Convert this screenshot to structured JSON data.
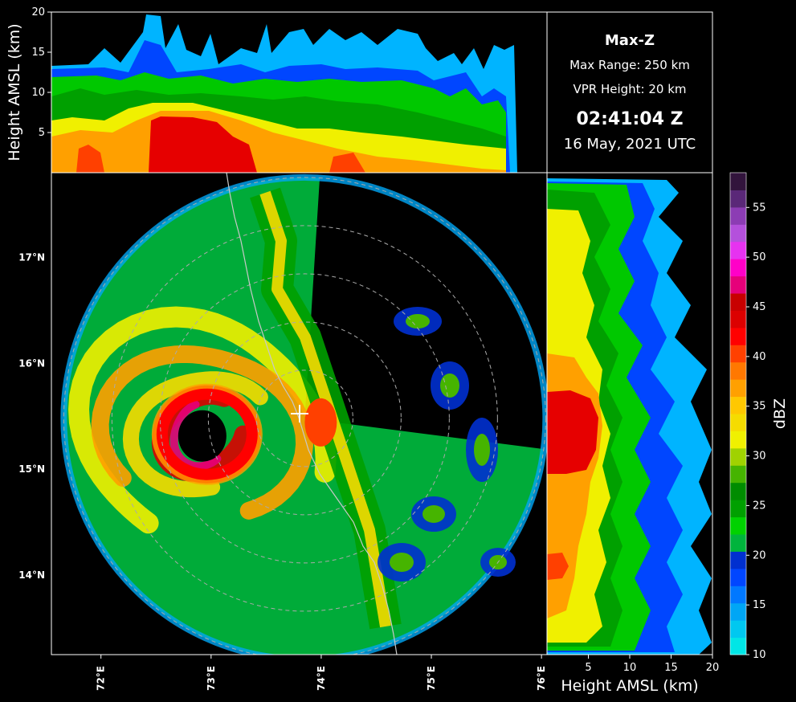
{
  "info_panel": {
    "product": "Max-Z",
    "max_range": "Max Range: 250 km",
    "vpr_height": "VPR Height: 20 km",
    "time": "02:41:04 Z",
    "date": "16 May, 2021 UTC"
  },
  "chart_data": [
    {
      "type": "heatmap",
      "panel": "max-z-plan-view",
      "title": "",
      "xlabel": "",
      "ylabel": "",
      "x_ticks": [
        "72°E",
        "73°E",
        "74°E",
        "75°E",
        "76°E"
      ],
      "y_ticks": [
        "14°N",
        "15°N",
        "16°N",
        "17°N"
      ],
      "x_tick_values": [
        72,
        73,
        74,
        75,
        76
      ],
      "y_tick_values": [
        14,
        15,
        16,
        17
      ],
      "xlim": [
        71.55,
        76.05
      ],
      "ylim": [
        13.25,
        17.8
      ],
      "radar_site": {
        "lon": 73.85,
        "lat": 15.48
      },
      "range_rings_km": [
        50,
        100,
        150,
        200,
        250
      ],
      "cyclone_eye": {
        "lon": 72.92,
        "lat": 15.33
      },
      "reflectivity_bands": [
        {
          "ring": "outer",
          "dbz": 18
        },
        {
          "ring": "eyewall",
          "dbz": 42
        },
        {
          "ring": "spiral",
          "dbz": 33
        }
      ]
    },
    {
      "type": "heatmap",
      "panel": "top-vertical-profile",
      "ylabel": "Height AMSL (km)",
      "y_ticks": [
        "5",
        "10",
        "15",
        "20"
      ],
      "y_tick_values": [
        5,
        10,
        15,
        20
      ],
      "ylim": [
        0,
        20
      ]
    },
    {
      "type": "heatmap",
      "panel": "right-vertical-profile",
      "xlabel": "Height AMSL (km)",
      "x_ticks": [
        "5",
        "10",
        "15",
        "20"
      ],
      "x_tick_values": [
        5,
        10,
        15,
        20
      ],
      "xlim": [
        0,
        20
      ]
    },
    {
      "type": "heatmap",
      "panel": "colorbar",
      "ylabel": "dBZ",
      "ticks": [
        "10",
        "15",
        "20",
        "25",
        "30",
        "35",
        "40",
        "45",
        "50",
        "55"
      ],
      "tick_values": [
        10,
        15,
        20,
        25,
        30,
        35,
        40,
        45,
        50,
        55
      ],
      "range": [
        10,
        58.5
      ],
      "colors": [
        "#00e6e6",
        "#00c8f0",
        "#00a6f5",
        "#0078ff",
        "#0046ff",
        "#0030d0",
        "#00b43c",
        "#00d200",
        "#00a000",
        "#008c00",
        "#46b400",
        "#a0d200",
        "#f0f000",
        "#f5dc00",
        "#ffc800",
        "#ffa000",
        "#ff7800",
        "#ff4000",
        "#ff0000",
        "#dc0000",
        "#c80000",
        "#e6007a",
        "#ff00c8",
        "#e632f0",
        "#b450dc",
        "#8c3cb4",
        "#5a2878",
        "#32143c"
      ]
    }
  ]
}
